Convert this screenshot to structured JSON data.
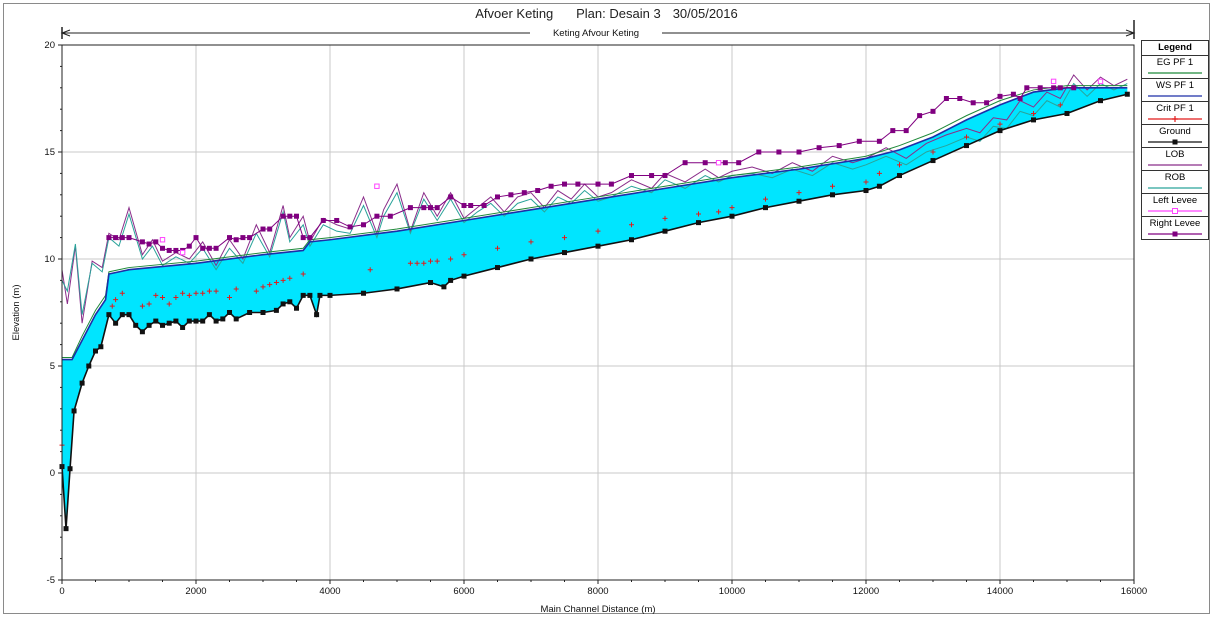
{
  "header": {
    "project": "Afvoer Keting",
    "plan": "Plan: Desain 3",
    "date": "30/05/2016"
  },
  "reach_label": "Keting Afvour Keting",
  "legend": {
    "title": "Legend",
    "items": [
      {
        "label": "EG  PF 1",
        "color": "#1f8a3a",
        "marker": "none"
      },
      {
        "label": "WS  PF 1",
        "color": "#1c2fa8",
        "marker": "none"
      },
      {
        "label": "Crit  PF 1",
        "color": "#e21b1b",
        "marker": "plus"
      },
      {
        "label": "Ground",
        "color": "#111111",
        "marker": "square"
      },
      {
        "label": "LOB",
        "color": "#8a2d8a",
        "marker": "none"
      },
      {
        "label": "ROB",
        "color": "#2aa39a",
        "marker": "none"
      },
      {
        "label": "Left Levee",
        "color": "#ff44ff",
        "marker": "open-square"
      },
      {
        "label": "Right Levee",
        "color": "#800080",
        "marker": "square"
      }
    ]
  },
  "chart_data": {
    "type": "line",
    "title": "Afvoer Keting     Plan: Desain 3     30/05/2016",
    "xlabel": "Main Channel Distance (m)",
    "ylabel": "Elevation (m)",
    "xlim": [
      0,
      16000
    ],
    "ylim": [
      -5,
      20
    ],
    "xticks": [
      0,
      2000,
      4000,
      6000,
      8000,
      10000,
      12000,
      14000,
      16000
    ],
    "yticks": [
      -5,
      0,
      5,
      10,
      15,
      20
    ],
    "grid": true,
    "legend_position": "right",
    "series": [
      {
        "name": "Ground",
        "color": "#111111",
        "x": [
          0,
          60,
          120,
          180,
          300,
          400,
          500,
          580,
          700,
          800,
          900,
          1000,
          1100,
          1200,
          1300,
          1400,
          1500,
          1600,
          1700,
          1800,
          1900,
          2000,
          2100,
          2200,
          2300,
          2400,
          2500,
          2600,
          2800,
          3000,
          3200,
          3300,
          3400,
          3500,
          3600,
          3700,
          3800,
          3850,
          4000,
          4500,
          5000,
          5500,
          5700,
          5800,
          6000,
          6500,
          7000,
          7500,
          8000,
          8500,
          9000,
          9500,
          10000,
          10500,
          11000,
          11500,
          12000,
          12200,
          12500,
          13000,
          13500,
          14000,
          14500,
          15000,
          15500,
          15900
        ],
        "y": [
          0.3,
          -2.6,
          0.2,
          2.9,
          4.2,
          5.0,
          5.7,
          5.9,
          7.4,
          7.0,
          7.4,
          7.4,
          6.9,
          6.6,
          6.9,
          7.1,
          6.9,
          7.0,
          7.1,
          6.8,
          7.1,
          7.1,
          7.1,
          7.4,
          7.1,
          7.2,
          7.5,
          7.2,
          7.5,
          7.5,
          7.6,
          7.9,
          8.0,
          7.7,
          8.3,
          8.3,
          7.4,
          8.3,
          8.3,
          8.4,
          8.6,
          8.9,
          8.7,
          9.0,
          9.2,
          9.6,
          10.0,
          10.3,
          10.6,
          10.9,
          11.3,
          11.7,
          12.0,
          12.4,
          12.7,
          13.0,
          13.2,
          13.4,
          13.9,
          14.6,
          15.3,
          16.0,
          16.5,
          16.8,
          17.4,
          17.7
        ]
      },
      {
        "name": "WS  PF 1",
        "color": "#1c2fa8",
        "x": [
          0,
          150,
          300,
          500,
          650,
          700,
          1000,
          2000,
          3000,
          3600,
          3700,
          4000,
          5000,
          6000,
          7000,
          8000,
          9000,
          10000,
          11000,
          12000,
          12500,
          13000,
          13500,
          14000,
          14500,
          15000,
          15500,
          15900
        ],
        "y": [
          5.3,
          5.3,
          6.2,
          7.4,
          8.1,
          9.3,
          9.5,
          9.8,
          10.2,
          10.4,
          10.8,
          10.9,
          11.3,
          11.8,
          12.3,
          12.8,
          13.3,
          13.8,
          14.2,
          14.7,
          15.1,
          15.7,
          16.5,
          17.2,
          17.8,
          18.0,
          18.0,
          18.0
        ]
      },
      {
        "name": "EG  PF 1",
        "color": "#1f8a3a",
        "x": [
          0,
          150,
          300,
          500,
          650,
          700,
          1000,
          2000,
          3000,
          3600,
          3700,
          4000,
          5000,
          6000,
          7000,
          8000,
          9000,
          10000,
          11000,
          12000,
          12500,
          13000,
          13500,
          14000,
          14500,
          15000,
          15500,
          15900
        ],
        "y": [
          5.4,
          5.4,
          6.4,
          7.6,
          8.3,
          9.4,
          9.6,
          9.9,
          10.3,
          10.5,
          10.9,
          11.0,
          11.4,
          11.9,
          12.4,
          12.9,
          13.4,
          13.9,
          14.3,
          14.8,
          15.3,
          15.9,
          16.7,
          17.4,
          17.9,
          18.1,
          18.1,
          18.1
        ]
      },
      {
        "name": "Crit  PF 1",
        "color": "#e21b1b",
        "x": [
          0,
          750,
          800,
          900,
          1200,
          1300,
          1400,
          1500,
          1600,
          1700,
          1800,
          1900,
          2000,
          2100,
          2200,
          2300,
          2500,
          2600,
          2900,
          3000,
          3100,
          3200,
          3300,
          3400,
          3600,
          4600,
          5200,
          5300,
          5400,
          5500,
          5600,
          5800,
          6000,
          6500,
          7000,
          7500,
          8000,
          8500,
          9000,
          9500,
          9800,
          10000,
          10500,
          11000,
          11500,
          12000,
          12200,
          12500,
          13000,
          13500,
          14000,
          14500,
          14900
        ],
        "y": [
          1.3,
          7.8,
          8.1,
          8.4,
          7.8,
          7.9,
          8.3,
          8.2,
          7.9,
          8.2,
          8.4,
          8.3,
          8.4,
          8.4,
          8.5,
          8.5,
          8.2,
          8.6,
          8.5,
          8.7,
          8.8,
          8.9,
          9.0,
          9.1,
          9.3,
          9.5,
          9.8,
          9.8,
          9.8,
          9.9,
          9.9,
          10.0,
          10.2,
          10.5,
          10.8,
          11.0,
          11.3,
          11.6,
          11.9,
          12.1,
          12.2,
          12.4,
          12.8,
          13.1,
          13.4,
          13.6,
          14.0,
          14.4,
          15.0,
          15.7,
          16.3,
          16.8,
          17.2
        ]
      },
      {
        "name": "LOB",
        "color": "#8a2d8a",
        "x": [
          0,
          80,
          200,
          300,
          450,
          600,
          700,
          850,
          1000,
          1200,
          1350,
          1500,
          1700,
          1900,
          2100,
          2300,
          2500,
          2700,
          2900,
          3100,
          3300,
          3400,
          3600,
          3700,
          3900,
          4100,
          4300,
          4500,
          4700,
          4800,
          5000,
          5200,
          5400,
          5600,
          5800,
          6000,
          6200,
          6400,
          6600,
          6800,
          7000,
          7200,
          7400,
          7600,
          7800,
          8000,
          8200,
          8500,
          8800,
          9000,
          9300,
          9600,
          9800,
          10000,
          10300,
          10600,
          10900,
          11200,
          11500,
          11800,
          12000,
          12300,
          12600,
          12900,
          13200,
          13500,
          13700,
          13900,
          14100,
          14300,
          14500,
          14700,
          14900,
          15100,
          15300,
          15500,
          15700,
          15900
        ],
        "y": [
          9.5,
          7.9,
          10.6,
          7.0,
          9.9,
          9.6,
          11.2,
          10.9,
          12.4,
          10.2,
          10.9,
          9.9,
          10.3,
          10.0,
          10.8,
          9.7,
          10.9,
          10.0,
          11.6,
          10.3,
          12.5,
          11.0,
          12.0,
          10.8,
          11.9,
          11.6,
          11.4,
          12.9,
          11.2,
          12.3,
          13.5,
          11.3,
          13.1,
          12.0,
          13.1,
          11.9,
          12.4,
          12.9,
          12.2,
          12.9,
          13.1,
          12.4,
          13.2,
          12.8,
          13.5,
          12.9,
          13.1,
          13.7,
          13.3,
          14.0,
          13.6,
          14.2,
          13.8,
          14.1,
          14.3,
          14.0,
          14.5,
          14.1,
          14.8,
          14.5,
          14.7,
          15.2,
          14.7,
          15.4,
          15.8,
          16.1,
          15.9,
          16.6,
          16.5,
          17.4,
          17.1,
          17.8,
          17.5,
          18.6,
          17.9,
          18.5,
          18.1,
          18.4
        ]
      },
      {
        "name": "ROB",
        "color": "#2aa39a",
        "x": [
          0,
          80,
          200,
          300,
          450,
          600,
          700,
          850,
          1000,
          1200,
          1350,
          1500,
          1700,
          1900,
          2100,
          2300,
          2500,
          2700,
          2900,
          3100,
          3300,
          3400,
          3600,
          3700,
          3900,
          4100,
          4300,
          4500,
          4700,
          4800,
          5000,
          5200,
          5400,
          5600,
          5800,
          6000,
          6200,
          6400,
          6600,
          6800,
          7000,
          7200,
          7400,
          7600,
          7800,
          8000,
          8200,
          8500,
          8800,
          9000,
          9300,
          9600,
          9800,
          10000,
          10300,
          10600,
          10900,
          11200,
          11500,
          11800,
          12000,
          12300,
          12600,
          12900,
          13200,
          13500,
          13700,
          13900,
          14100,
          14300,
          14500,
          14700,
          14900,
          15100,
          15300,
          15500,
          15700,
          15900
        ],
        "y": [
          9.0,
          8.5,
          10.7,
          7.4,
          9.8,
          9.4,
          11.0,
          10.6,
          12.1,
          10.0,
          10.6,
          9.7,
          10.1,
          9.8,
          10.5,
          9.5,
          10.5,
          9.8,
          11.2,
          10.1,
          12.2,
          10.8,
          11.6,
          10.6,
          11.6,
          11.3,
          11.2,
          12.5,
          11.0,
          12.0,
          13.1,
          11.2,
          12.8,
          11.8,
          12.8,
          11.7,
          12.2,
          12.6,
          12.0,
          12.6,
          12.8,
          12.2,
          12.9,
          12.6,
          13.2,
          12.7,
          12.9,
          13.4,
          13.1,
          13.7,
          13.3,
          13.9,
          13.6,
          13.9,
          14.0,
          13.8,
          14.2,
          13.9,
          14.5,
          14.2,
          14.4,
          14.8,
          14.4,
          15.0,
          15.3,
          15.7,
          15.5,
          16.2,
          16.1,
          16.9,
          16.7,
          17.4,
          17.1,
          18.2,
          17.6,
          18.2,
          17.9,
          18.2
        ]
      },
      {
        "name": "Left Levee",
        "color": "#ff44ff",
        "x": [
          1500,
          1800,
          4700,
          9800,
          14800,
          15500
        ],
        "y": [
          10.9,
          10.3,
          13.4,
          14.5,
          18.3,
          18.3
        ]
      },
      {
        "name": "Right Levee",
        "color": "#800080",
        "x": [
          700,
          800,
          900,
          1000,
          1200,
          1300,
          1400,
          1500,
          1600,
          1700,
          1800,
          1900,
          2000,
          2100,
          2200,
          2300,
          2500,
          2600,
          2700,
          2800,
          3000,
          3100,
          3300,
          3400,
          3500,
          3600,
          3700,
          3900,
          4100,
          4300,
          4500,
          4700,
          4900,
          5200,
          5400,
          5500,
          5600,
          5800,
          6000,
          6100,
          6300,
          6500,
          6700,
          6900,
          7100,
          7300,
          7500,
          7700,
          8000,
          8200,
          8500,
          8800,
          9000,
          9300,
          9600,
          9900,
          10100,
          10400,
          10700,
          11000,
          11300,
          11600,
          11900,
          12200,
          12400,
          12600,
          12800,
          13000,
          13200,
          13400,
          13600,
          13800,
          14000,
          14200,
          14300,
          14400,
          14600,
          14800,
          14900,
          15100
        ],
        "y": [
          11.0,
          11.0,
          11.0,
          11.0,
          10.8,
          10.7,
          10.8,
          10.5,
          10.4,
          10.4,
          10.4,
          10.6,
          11.0,
          10.5,
          10.5,
          10.5,
          11.0,
          10.9,
          11.0,
          11.0,
          11.4,
          11.4,
          12.0,
          12.0,
          12.0,
          11.0,
          11.0,
          11.8,
          11.8,
          11.5,
          11.6,
          12.0,
          12.0,
          12.4,
          12.4,
          12.4,
          12.4,
          12.9,
          12.5,
          12.5,
          12.5,
          12.9,
          13.0,
          13.1,
          13.2,
          13.4,
          13.5,
          13.5,
          13.5,
          13.5,
          13.9,
          13.9,
          13.9,
          14.5,
          14.5,
          14.5,
          14.5,
          15.0,
          15.0,
          15.0,
          15.2,
          15.3,
          15.5,
          15.5,
          16.0,
          16.0,
          16.7,
          16.9,
          17.5,
          17.5,
          17.3,
          17.3,
          17.6,
          17.7,
          17.5,
          18.0,
          18.0,
          18.0,
          18.0,
          18.0
        ]
      }
    ]
  }
}
